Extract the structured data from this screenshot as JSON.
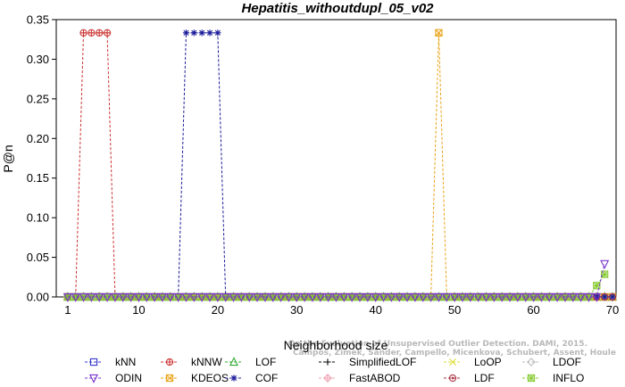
{
  "chart_data": {
    "type": "line",
    "title": "Hepatitis_withoutdupl_05_v02",
    "xlabel": "Neighborhood size",
    "ylabel": "P@n",
    "xlim": [
      0,
      70
    ],
    "ylim": [
      0,
      0.35
    ],
    "x_ticks": [
      1,
      10,
      20,
      30,
      40,
      50,
      60,
      70
    ],
    "y_ticks": [
      "0.00",
      "0.05",
      "0.10",
      "0.15",
      "0.20",
      "0.25",
      "0.30",
      "0.35"
    ],
    "legend_position": "bottom",
    "watermark": [
      "Campos, Zimek, Sander, Campello, Micenkova, Schubert, Assent, Houle",
      "On the Evaluation of Unsupervised Outlier Detection. DAMI, 2015."
    ],
    "series": [
      {
        "name": "kNN",
        "color": "#3333cc",
        "marker": "square",
        "points": [
          [
            1,
            0
          ],
          [
            70,
            0
          ]
        ]
      },
      {
        "name": "ODIN",
        "color": "#7733cc",
        "marker": "triangle-down",
        "points": [
          [
            1,
            0
          ],
          [
            68,
            0
          ],
          [
            69,
            0.0417
          ]
        ]
      },
      {
        "name": "kNNW",
        "color": "#cc3333",
        "marker": "circle-plus",
        "points": [
          [
            1,
            0
          ],
          [
            2,
            0
          ],
          [
            3,
            0.3333
          ],
          [
            4,
            0.3333
          ],
          [
            5,
            0.3333
          ],
          [
            6,
            0.3333
          ],
          [
            7,
            0
          ],
          [
            70,
            0
          ]
        ]
      },
      {
        "name": "KDEOS",
        "color": "#e8a317",
        "marker": "square-x",
        "points": [
          [
            1,
            0
          ],
          [
            47,
            0
          ],
          [
            48,
            0.3333
          ],
          [
            49,
            0
          ],
          [
            70,
            0
          ]
        ]
      },
      {
        "name": "LOF",
        "color": "#33aa33",
        "marker": "triangle",
        "points": [
          [
            1,
            0
          ],
          [
            70,
            0
          ]
        ]
      },
      {
        "name": "COF",
        "color": "#1a1a99",
        "marker": "asterisk",
        "points": [
          [
            1,
            0
          ],
          [
            15,
            0
          ],
          [
            16,
            0.3333
          ],
          [
            17,
            0.3333
          ],
          [
            18,
            0.3333
          ],
          [
            19,
            0.3333
          ],
          [
            20,
            0.3333
          ],
          [
            21,
            0
          ],
          [
            70,
            0
          ]
        ]
      },
      {
        "name": "SimplifiedLOF",
        "color": "#000000",
        "marker": "plus",
        "points": [
          [
            1,
            0
          ],
          [
            70,
            0
          ]
        ]
      },
      {
        "name": "FastABOD",
        "color": "#f0a0b0",
        "marker": "diamond-plus",
        "points": [
          [
            1,
            0
          ],
          [
            70,
            0
          ]
        ]
      },
      {
        "name": "LoOP",
        "color": "#dddd33",
        "marker": "x",
        "points": [
          [
            1,
            0
          ],
          [
            70,
            0
          ]
        ]
      },
      {
        "name": "LDF",
        "color": "#aa3344",
        "marker": "circle-filled",
        "points": [
          [
            1,
            0
          ],
          [
            70,
            0
          ]
        ]
      },
      {
        "name": "LDOF",
        "color": "#bbbbbb",
        "marker": "diamond",
        "points": [
          [
            1,
            0
          ],
          [
            70,
            0
          ]
        ]
      },
      {
        "name": "INFLO",
        "color": "#88cc33",
        "marker": "star-box",
        "points": [
          [
            1,
            0
          ],
          [
            67,
            0
          ],
          [
            68,
            0.0143
          ],
          [
            69,
            0.0286
          ]
        ]
      }
    ]
  }
}
